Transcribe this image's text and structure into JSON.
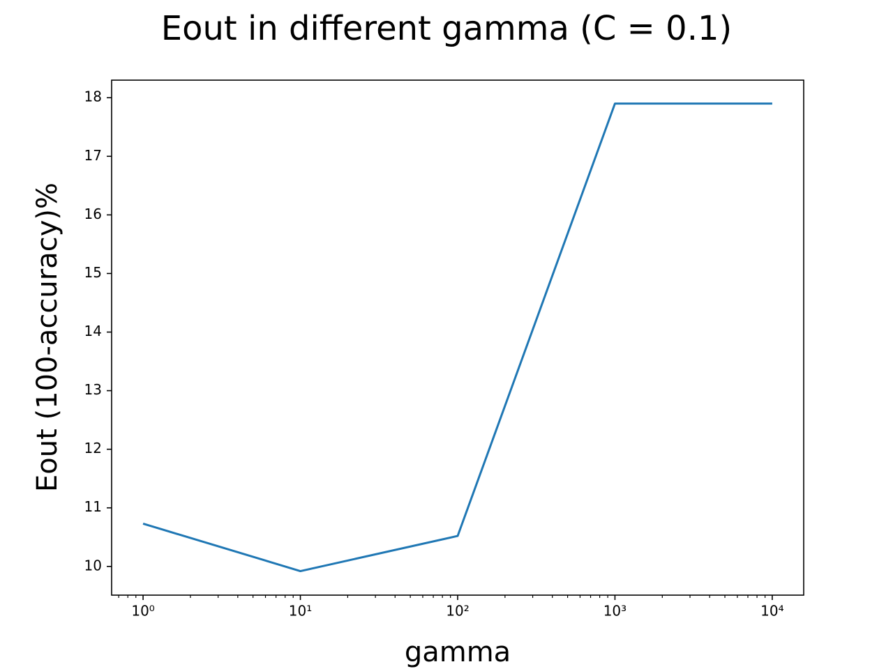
{
  "chart_data": {
    "type": "line",
    "title": "Eout in different gamma (C = 0.1)",
    "x_label": "gamma",
    "y_label": "Eout (100-accuracy)%",
    "x": [
      1,
      10,
      100,
      1000,
      10000
    ],
    "series": [
      {
        "name": "Eout",
        "color": "#1f77b4",
        "values": [
          10.73,
          9.92,
          10.52,
          17.9,
          17.9
        ]
      }
    ],
    "x_scale": "log",
    "xlim": [
      0.631,
      15849
    ],
    "ylim": [
      9.51,
      18.3
    ],
    "xticks": [
      {
        "value": 1,
        "label": "10⁰"
      },
      {
        "value": 10,
        "label": "10¹"
      },
      {
        "value": 100,
        "label": "10²"
      },
      {
        "value": 1000,
        "label": "10³"
      },
      {
        "value": 10000,
        "label": "10⁴"
      }
    ],
    "xminorticks": [
      0.7,
      0.8,
      0.9,
      2,
      3,
      4,
      5,
      6,
      7,
      8,
      9,
      20,
      30,
      40,
      50,
      60,
      70,
      80,
      90,
      200,
      300,
      400,
      500,
      600,
      700,
      800,
      900,
      2000,
      3000,
      4000,
      5000,
      6000,
      7000,
      8000,
      9000
    ],
    "yticks": [
      10,
      11,
      12,
      13,
      14,
      15,
      16,
      17,
      18
    ],
    "grid": false
  }
}
